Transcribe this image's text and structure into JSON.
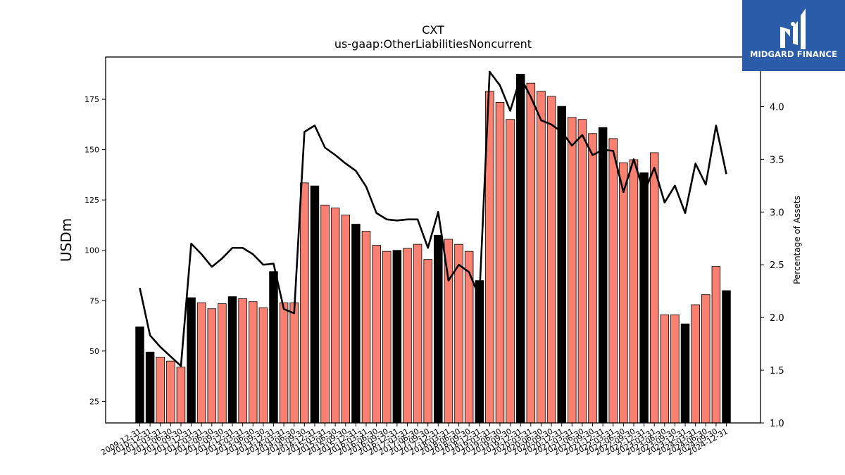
{
  "logo": {
    "text": "MIDGARD FINANCE",
    "icon": "midgard-logo-icon"
  },
  "chart_data": {
    "type": "bar",
    "title": "CXT",
    "subtitle": "us-gaap:OtherLiabilitiesNoncurrent",
    "ylabel": "USDm",
    "y2label": "Percentage of Assets",
    "ylim": [
      14.3,
      196
    ],
    "y2lim": [
      1.0,
      4.47
    ],
    "yticks": [
      25,
      50,
      75,
      100,
      125,
      150,
      175
    ],
    "y2ticks": [
      "1.0",
      "1.5",
      "2.0",
      "2.5",
      "3.0",
      "3.5",
      "4.0"
    ],
    "colors": {
      "annual": "#000000",
      "quarterly": "#fa8072",
      "line": "#000000"
    },
    "categories": [
      "2009-12-31",
      "2010-12-31",
      "2011-03-31",
      "2011-06-30",
      "2011-09-30",
      "2011-12-31",
      "2012-03-31",
      "2012-06-30",
      "2012-09-30",
      "2012-12-31",
      "2013-03-31",
      "2013-06-30",
      "2013-09-30",
      "2013-12-31",
      "2014-03-31",
      "2014-06-30",
      "2014-09-30",
      "2014-12-31",
      "2015-03-31",
      "2015-06-30",
      "2015-09-30",
      "2015-12-31",
      "2016-03-31",
      "2016-06-30",
      "2016-09-30",
      "2016-12-31",
      "2017-03-31",
      "2017-06-30",
      "2017-09-30",
      "2017-12-31",
      "2018-03-31",
      "2018-06-30",
      "2018-09-30",
      "2018-12-31",
      "2019-03-31",
      "2019-06-30",
      "2019-09-30",
      "2019-12-31",
      "2020-03-31",
      "2020-06-30",
      "2020-09-30",
      "2020-12-31",
      "2021-03-31",
      "2021-06-30",
      "2021-09-30",
      "2021-12-31",
      "2022-03-31",
      "2022-06-30",
      "2022-09-30",
      "2022-12-31",
      "2023-03-31",
      "2023-06-30",
      "2023-09-30",
      "2023-12-31",
      "2024-03-31",
      "2024-06-30",
      "2024-09-30",
      "2024-12-31"
    ],
    "series": [
      {
        "values": [
          62,
          49.5,
          47,
          45,
          42,
          76.5,
          74,
          71,
          73.5,
          77,
          76,
          74.5,
          71.5,
          89.5,
          74,
          74,
          133.5,
          132,
          122.5,
          121,
          117.5,
          113,
          109.5,
          102.5,
          99.5,
          100,
          101,
          103,
          95.5,
          107.5,
          105.5,
          103,
          99.5,
          85,
          179,
          173.5,
          165,
          187.5,
          183,
          179,
          176.5,
          171.5,
          166,
          165,
          158,
          161,
          155.5,
          143.5,
          145,
          138.5,
          148.5,
          68,
          68,
          63.5,
          73,
          78,
          92,
          80
        ]
      },
      {
        "values": [
          2.28,
          1.83,
          1.72,
          1.63,
          1.54,
          2.7,
          2.6,
          2.48,
          2.56,
          2.66,
          2.66,
          2.6,
          2.5,
          2.51,
          2.08,
          2.04,
          3.76,
          3.82,
          3.61,
          3.54,
          3.46,
          3.39,
          3.24,
          2.99,
          2.93,
          2.92,
          2.93,
          2.93,
          2.66,
          3.0,
          2.35,
          2.5,
          2.43,
          2.19,
          4.33,
          4.2,
          3.96,
          4.28,
          4.09,
          3.87,
          3.83,
          3.76,
          3.63,
          3.73,
          3.54,
          3.59,
          3.58,
          3.19,
          3.5,
          3.18,
          3.42,
          3.09,
          3.25,
          2.99,
          3.46,
          3.26,
          3.82,
          3.36
        ]
      }
    ],
    "annual_flags": [
      1,
      1,
      0,
      0,
      0,
      1,
      0,
      0,
      0,
      1,
      0,
      0,
      0,
      1,
      0,
      0,
      0,
      1,
      0,
      0,
      0,
      1,
      0,
      0,
      0,
      1,
      0,
      0,
      0,
      1,
      0,
      0,
      0,
      1,
      0,
      0,
      0,
      1,
      0,
      0,
      0,
      1,
      0,
      0,
      0,
      1,
      0,
      0,
      0,
      1,
      0,
      0,
      0,
      1,
      0,
      0,
      0,
      1
    ]
  }
}
